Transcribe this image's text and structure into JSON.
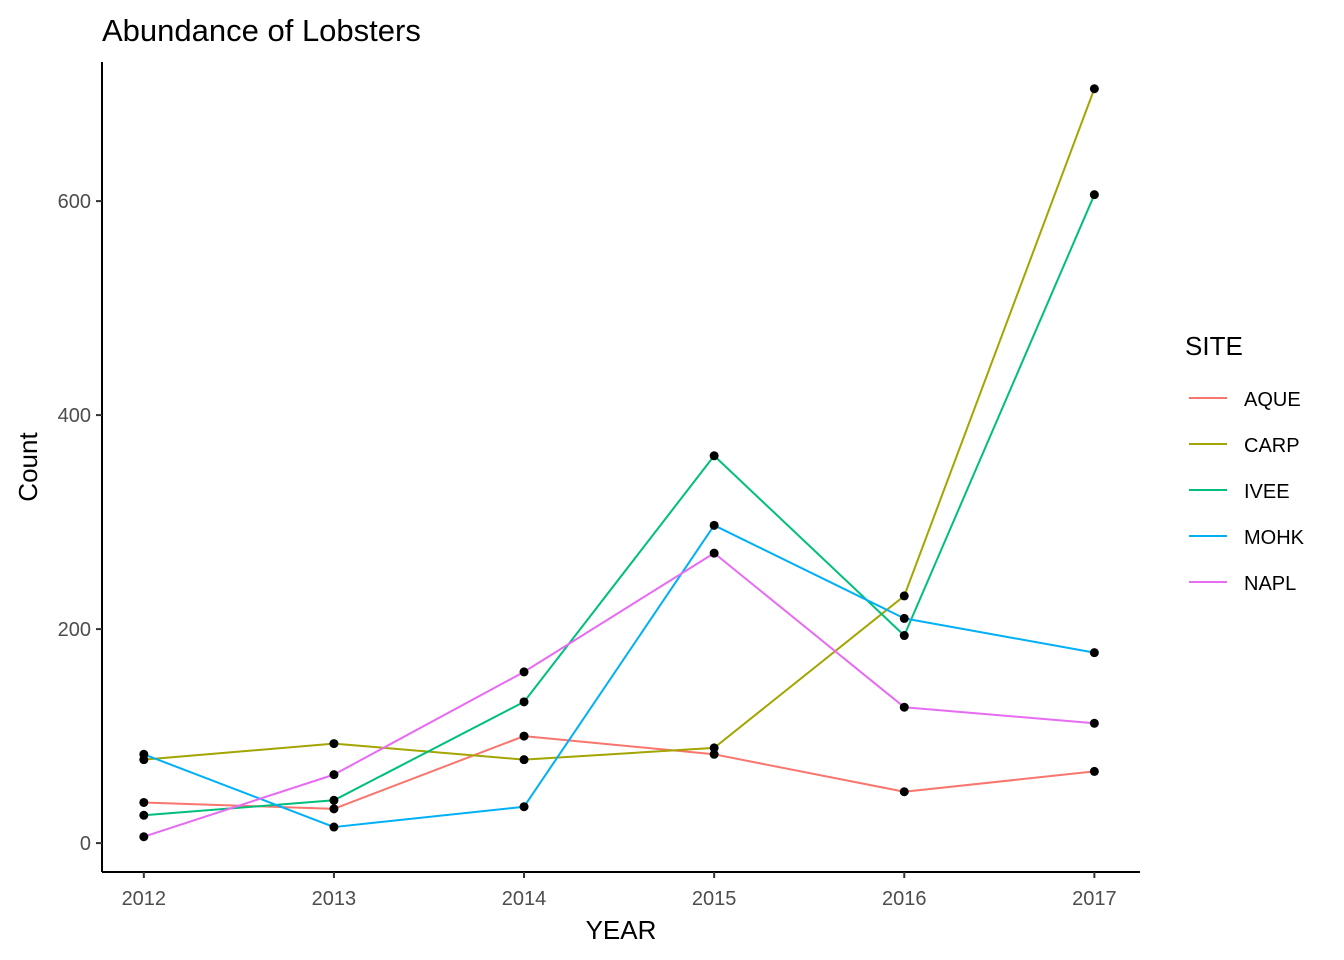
{
  "chart_data": {
    "type": "line",
    "title": "Abundance of Lobsters",
    "xlabel": "YEAR",
    "ylabel": "Count",
    "x": [
      2012,
      2013,
      2014,
      2015,
      2016,
      2017
    ],
    "xlim": [
      2011.78,
      2017.24
    ],
    "ylim": [
      -27,
      730
    ],
    "y_ticks": [
      0,
      200,
      400,
      600
    ],
    "grid": false,
    "legend": {
      "title": "SITE",
      "position": "right"
    },
    "point_color": "#000000",
    "series": [
      {
        "name": "AQUE",
        "color": "#F8766D",
        "values": [
          38,
          32,
          100,
          83,
          48,
          67
        ]
      },
      {
        "name": "CARP",
        "color": "#A3A500",
        "values": [
          78,
          93,
          78,
          89,
          231,
          705
        ]
      },
      {
        "name": "IVEE",
        "color": "#00BF7D",
        "values": [
          26,
          40,
          132,
          362,
          194,
          606
        ]
      },
      {
        "name": "MOHK",
        "color": "#00B0F6",
        "values": [
          83,
          15,
          34,
          297,
          210,
          178
        ]
      },
      {
        "name": "NAPL",
        "color": "#E76BF3",
        "values": [
          6,
          64,
          160,
          271,
          127,
          112
        ]
      }
    ]
  }
}
